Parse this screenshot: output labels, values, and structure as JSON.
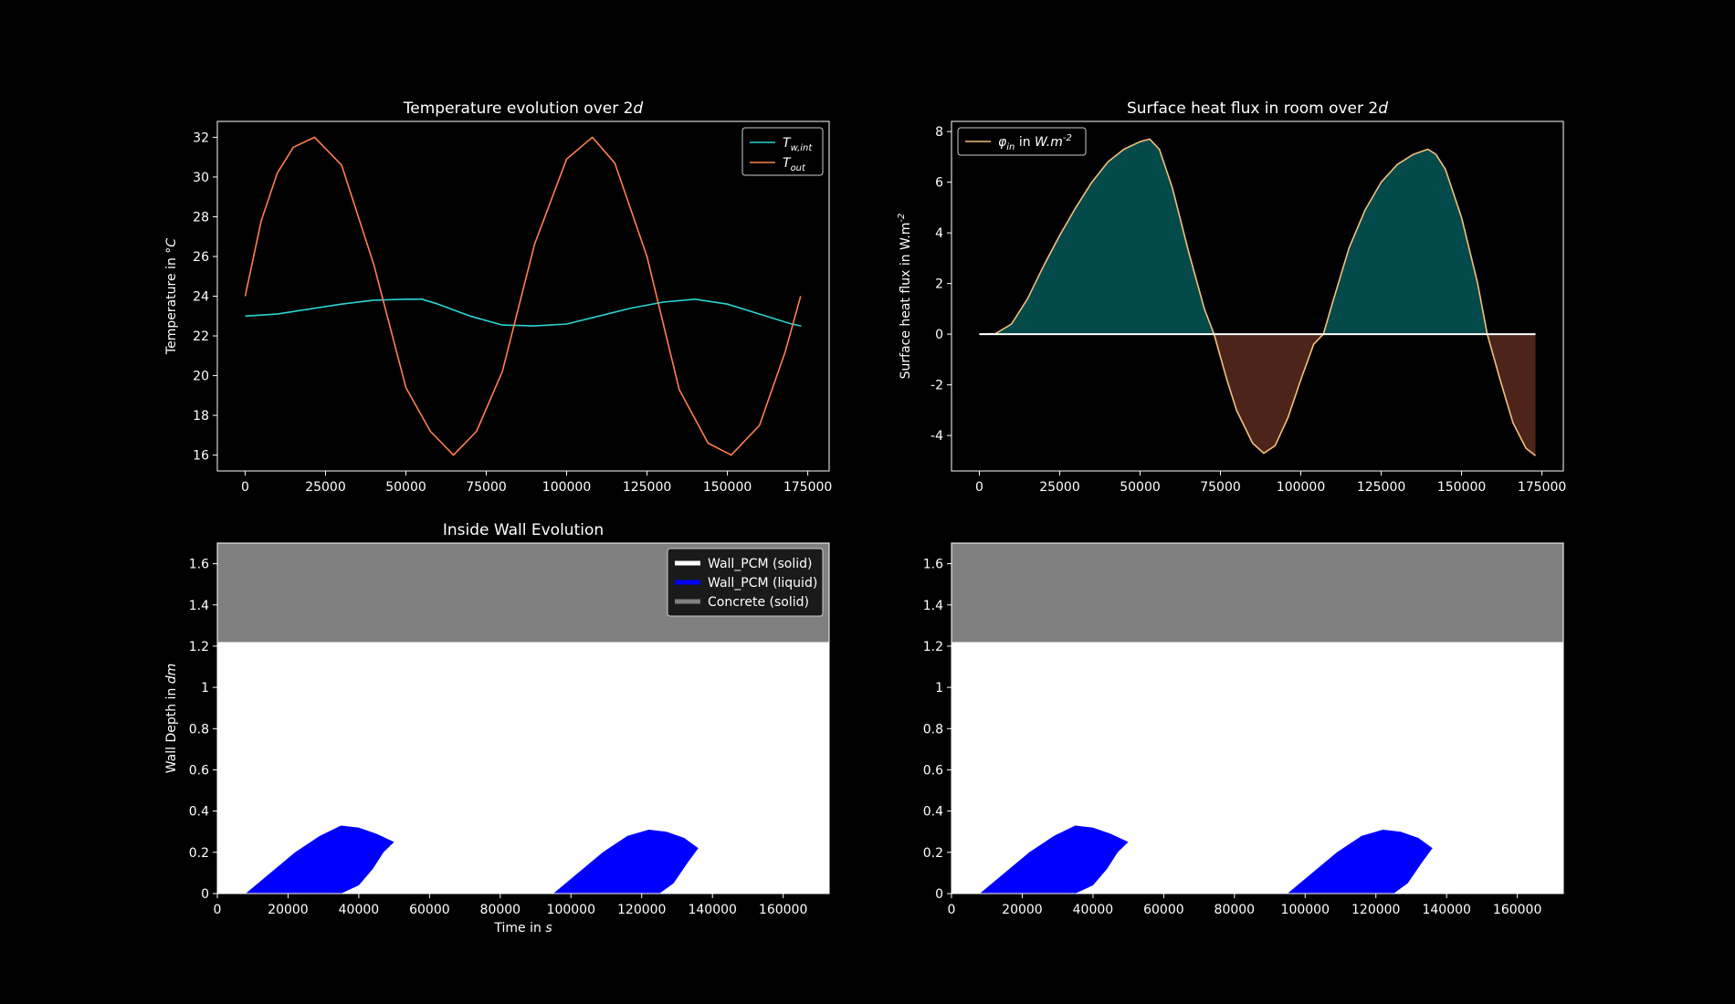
{
  "colors": {
    "background": "#000000",
    "t_wall_int": "#2ad4d4",
    "t_out": "#ff7f50",
    "flux_line": "#f5c07a",
    "flux_pos_fill": "#044a4a",
    "flux_neg_fill": "#4d2419",
    "zero_line": "#ffffff",
    "pcm_solid": "#ffffff",
    "pcm_liquid": "#0000ff",
    "concrete": "#808080"
  },
  "chart_data": [
    {
      "type": "line",
      "title": "Temperature evolution over 2d",
      "xlabel": "",
      "ylabel": "Temperature in °C",
      "xlim": [
        -8650,
        181650
      ],
      "ylim": [
        15.2,
        32.8
      ],
      "xticks": [
        0,
        25000,
        50000,
        75000,
        100000,
        125000,
        150000,
        175000
      ],
      "yticks": [
        16,
        18,
        20,
        22,
        24,
        26,
        28,
        30,
        32
      ],
      "legend_position": "upper right",
      "series": [
        {
          "name": "T_{w,int}",
          "x": [
            0,
            10000,
            20000,
            30000,
            40000,
            50000,
            55000,
            60000,
            70000,
            80000,
            90000,
            100000,
            110000,
            120000,
            130000,
            140000,
            150000,
            160000,
            170000,
            173000
          ],
          "values": [
            23.0,
            23.1,
            23.35,
            23.6,
            23.8,
            23.85,
            23.85,
            23.6,
            23.0,
            22.55,
            22.5,
            22.6,
            23.0,
            23.4,
            23.7,
            23.85,
            23.6,
            23.1,
            22.6,
            22.5
          ]
        },
        {
          "name": "T_out",
          "x": [
            0,
            5000,
            10000,
            15000,
            21600,
            30000,
            40000,
            50000,
            57600,
            64800,
            72000,
            80000,
            90000,
            100000,
            108000,
            115000,
            125000,
            135000,
            144000,
            151200,
            160000,
            168000,
            172800
          ],
          "values": [
            24.0,
            27.8,
            30.2,
            31.5,
            32.0,
            30.6,
            25.6,
            19.4,
            17.2,
            16.0,
            17.2,
            20.2,
            26.6,
            30.9,
            32.0,
            30.7,
            26.0,
            19.3,
            16.6,
            16.0,
            17.5,
            21.2,
            24.0
          ]
        }
      ]
    },
    {
      "type": "area",
      "title": "Surface heat flux in room over 2d",
      "xlabel": "",
      "ylabel": "Surface heat flux in W.m^-2",
      "xlim": [
        -8650,
        181650
      ],
      "ylim": [
        -5.4,
        8.4
      ],
      "xticks": [
        0,
        25000,
        50000,
        75000,
        100000,
        125000,
        150000,
        175000
      ],
      "yticks": [
        -4,
        -2,
        0,
        2,
        4,
        6,
        8
      ],
      "legend_position": "upper left",
      "series": [
        {
          "name": "φ_in in W.m^-2",
          "x": [
            0,
            5000,
            10000,
            15000,
            20000,
            25000,
            30000,
            35000,
            40000,
            45000,
            50000,
            53000,
            56000,
            60000,
            65000,
            70000,
            73000,
            77000,
            80000,
            85000,
            88500,
            92000,
            96000,
            100000,
            104000,
            107000,
            110000,
            115000,
            120000,
            125000,
            130000,
            135000,
            139500,
            142000,
            145000,
            150000,
            155000,
            158000,
            162000,
            166000,
            170000,
            173000
          ],
          "values": [
            0.0,
            0.02,
            0.4,
            1.4,
            2.7,
            3.9,
            5.0,
            6.0,
            6.8,
            7.3,
            7.6,
            7.7,
            7.3,
            5.8,
            3.3,
            1.0,
            0.0,
            -1.8,
            -3.0,
            -4.3,
            -4.7,
            -4.4,
            -3.3,
            -1.8,
            -0.4,
            0.0,
            1.3,
            3.4,
            4.9,
            6.0,
            6.7,
            7.1,
            7.3,
            7.1,
            6.5,
            4.6,
            2.0,
            0.0,
            -1.8,
            -3.5,
            -4.5,
            -4.8
          ]
        }
      ]
    },
    {
      "type": "area",
      "title": "Inside Wall Evolution",
      "xlabel": "Time in s",
      "ylabel": "Wall Depth in dm",
      "xlim": [
        0,
        173000
      ],
      "ylim": [
        0,
        1.7
      ],
      "xticks": [
        0,
        20000,
        40000,
        60000,
        80000,
        100000,
        120000,
        140000,
        160000
      ],
      "yticks": [
        0.0,
        0.2,
        0.4,
        0.6,
        0.8,
        1.0,
        1.2,
        1.4,
        1.6
      ],
      "legend_position": "upper right",
      "legend": [
        "Wall_PCM (solid)",
        "Wall_PCM (liquid)",
        "Concrete (solid)"
      ],
      "layers": {
        "pcm_top": 1.22,
        "concrete_top": 1.7
      },
      "liquid_regions": [
        {
          "x": [
            8000,
            15000,
            22000,
            29000,
            35000,
            40000,
            45000,
            50000,
            50000,
            47000,
            44000,
            40000,
            35000,
            30000,
            24000,
            18000,
            12000,
            8000
          ],
          "y": [
            0.0,
            0.1,
            0.2,
            0.28,
            0.33,
            0.32,
            0.29,
            0.25,
            0.25,
            0.2,
            0.12,
            0.04,
            0.0,
            0.0,
            0.0,
            0.0,
            0.0,
            0.0
          ]
        },
        {
          "x": [
            95000,
            102000,
            109000,
            116000,
            122000,
            127000,
            132000,
            136000,
            136000,
            133000,
            129000,
            125000,
            120000,
            114000,
            108000,
            101000,
            95000
          ],
          "y": [
            0.0,
            0.1,
            0.2,
            0.28,
            0.31,
            0.3,
            0.27,
            0.22,
            0.22,
            0.15,
            0.05,
            0.0,
            0.0,
            0.0,
            0.0,
            0.0,
            0.0
          ]
        }
      ]
    },
    {
      "type": "area",
      "title": "",
      "xlabel": "",
      "ylabel": "",
      "xlim": [
        0,
        173000
      ],
      "ylim": [
        0,
        1.7
      ],
      "xticks": [
        0,
        20000,
        40000,
        60000,
        80000,
        100000,
        120000,
        140000,
        160000
      ],
      "yticks": [
        0.0,
        0.2,
        0.4,
        0.6,
        0.8,
        1.0,
        1.2,
        1.4,
        1.6
      ],
      "layers": {
        "pcm_top": 1.22,
        "concrete_top": 1.7
      },
      "liquid_regions": [
        {
          "x": [
            8000,
            15000,
            22000,
            29000,
            35000,
            40000,
            45000,
            50000,
            50000,
            47000,
            44000,
            40000,
            35000,
            30000,
            24000,
            18000,
            12000,
            8000
          ],
          "y": [
            0.0,
            0.1,
            0.2,
            0.28,
            0.33,
            0.32,
            0.29,
            0.25,
            0.25,
            0.2,
            0.12,
            0.04,
            0.0,
            0.0,
            0.0,
            0.0,
            0.0,
            0.0
          ]
        },
        {
          "x": [
            95000,
            102000,
            109000,
            116000,
            122000,
            127000,
            132000,
            136000,
            136000,
            133000,
            129000,
            125000,
            120000,
            114000,
            108000,
            101000,
            95000
          ],
          "y": [
            0.0,
            0.1,
            0.2,
            0.28,
            0.31,
            0.3,
            0.27,
            0.22,
            0.22,
            0.15,
            0.05,
            0.0,
            0.0,
            0.0,
            0.0,
            0.0,
            0.0
          ]
        }
      ]
    }
  ]
}
